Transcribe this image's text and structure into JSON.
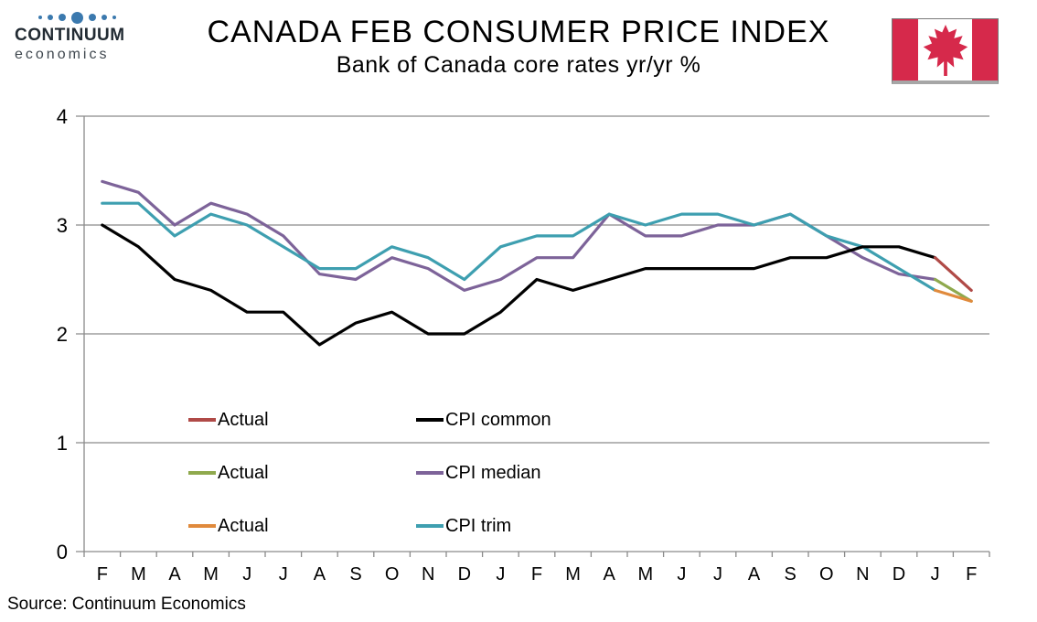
{
  "logo": {
    "name": "CONTINUUM",
    "subname": "economics",
    "dot_color": "#3B79AE"
  },
  "header": {
    "title": "CANADA FEB CONSUMER PRICE INDEX",
    "subtitle": "Bank of Canada core rates yr/yr %",
    "flag": {
      "country": "Canada",
      "red": "#D6294B"
    }
  },
  "chart_data": {
    "type": "line",
    "x_labels": [
      "F",
      "M",
      "A",
      "M",
      "J",
      "J",
      "A",
      "S",
      "O",
      "N",
      "D",
      "J",
      "F",
      "M",
      "A",
      "M",
      "J",
      "J",
      "A",
      "S",
      "O",
      "N",
      "D",
      "J",
      "F"
    ],
    "y_ticks": [
      0,
      1,
      2,
      3,
      4
    ],
    "ylim": [
      0,
      4
    ],
    "grid": "horizontal",
    "axis_color": "#8a8a8a",
    "series": [
      {
        "name": "CPI median",
        "color": "#7D6399",
        "values": [
          3.4,
          3.3,
          3.0,
          3.2,
          3.1,
          2.9,
          2.55,
          2.5,
          2.7,
          2.6,
          2.4,
          2.5,
          2.7,
          2.7,
          3.1,
          2.9,
          2.9,
          3.0,
          3.0,
          3.1,
          2.9,
          2.7,
          2.55,
          2.5,
          null
        ]
      },
      {
        "name": "CPI trim",
        "color": "#3E9FB0",
        "values": [
          3.2,
          3.2,
          2.9,
          3.1,
          3.0,
          2.8,
          2.6,
          2.6,
          2.8,
          2.7,
          2.5,
          2.8,
          2.9,
          2.9,
          3.1,
          3.0,
          3.1,
          3.1,
          3.0,
          3.1,
          2.9,
          2.8,
          2.6,
          2.4,
          null
        ]
      },
      {
        "name": "CPI common",
        "color": "#000000",
        "values": [
          3.0,
          2.8,
          2.5,
          2.4,
          2.2,
          2.2,
          1.9,
          2.1,
          2.2,
          2.0,
          2.0,
          2.2,
          2.5,
          2.4,
          2.5,
          2.6,
          2.6,
          2.6,
          2.6,
          2.7,
          2.7,
          2.8,
          2.8,
          2.7,
          null
        ]
      },
      {
        "name": "Actual",
        "color": "#B04A47",
        "values": [
          null,
          null,
          null,
          null,
          null,
          null,
          null,
          null,
          null,
          null,
          null,
          null,
          null,
          null,
          null,
          null,
          null,
          null,
          null,
          null,
          null,
          null,
          null,
          2.7,
          2.4
        ]
      },
      {
        "name": "Actual",
        "color": "#8FA94D",
        "values": [
          null,
          null,
          null,
          null,
          null,
          null,
          null,
          null,
          null,
          null,
          null,
          null,
          null,
          null,
          null,
          null,
          null,
          null,
          null,
          null,
          null,
          null,
          null,
          2.5,
          2.3
        ]
      },
      {
        "name": "Actual",
        "color": "#E08A3C",
        "values": [
          null,
          null,
          null,
          null,
          null,
          null,
          null,
          null,
          null,
          null,
          null,
          null,
          null,
          null,
          null,
          null,
          null,
          null,
          null,
          null,
          null,
          null,
          null,
          2.4,
          2.3
        ]
      }
    ]
  },
  "legend": {
    "columns": [
      {
        "items": [
          {
            "label": "Actual",
            "color": "#B04A47"
          },
          {
            "label": "Actual",
            "color": "#8FA94D"
          },
          {
            "label": "Actual",
            "color": "#E08A3C"
          }
        ]
      },
      {
        "items": [
          {
            "label": "CPI common",
            "color": "#000000"
          },
          {
            "label": "CPI median",
            "color": "#7D6399"
          },
          {
            "label": "CPI trim",
            "color": "#3E9FB0"
          }
        ]
      }
    ]
  },
  "footer": {
    "source": "Source: Continuum Economics"
  }
}
